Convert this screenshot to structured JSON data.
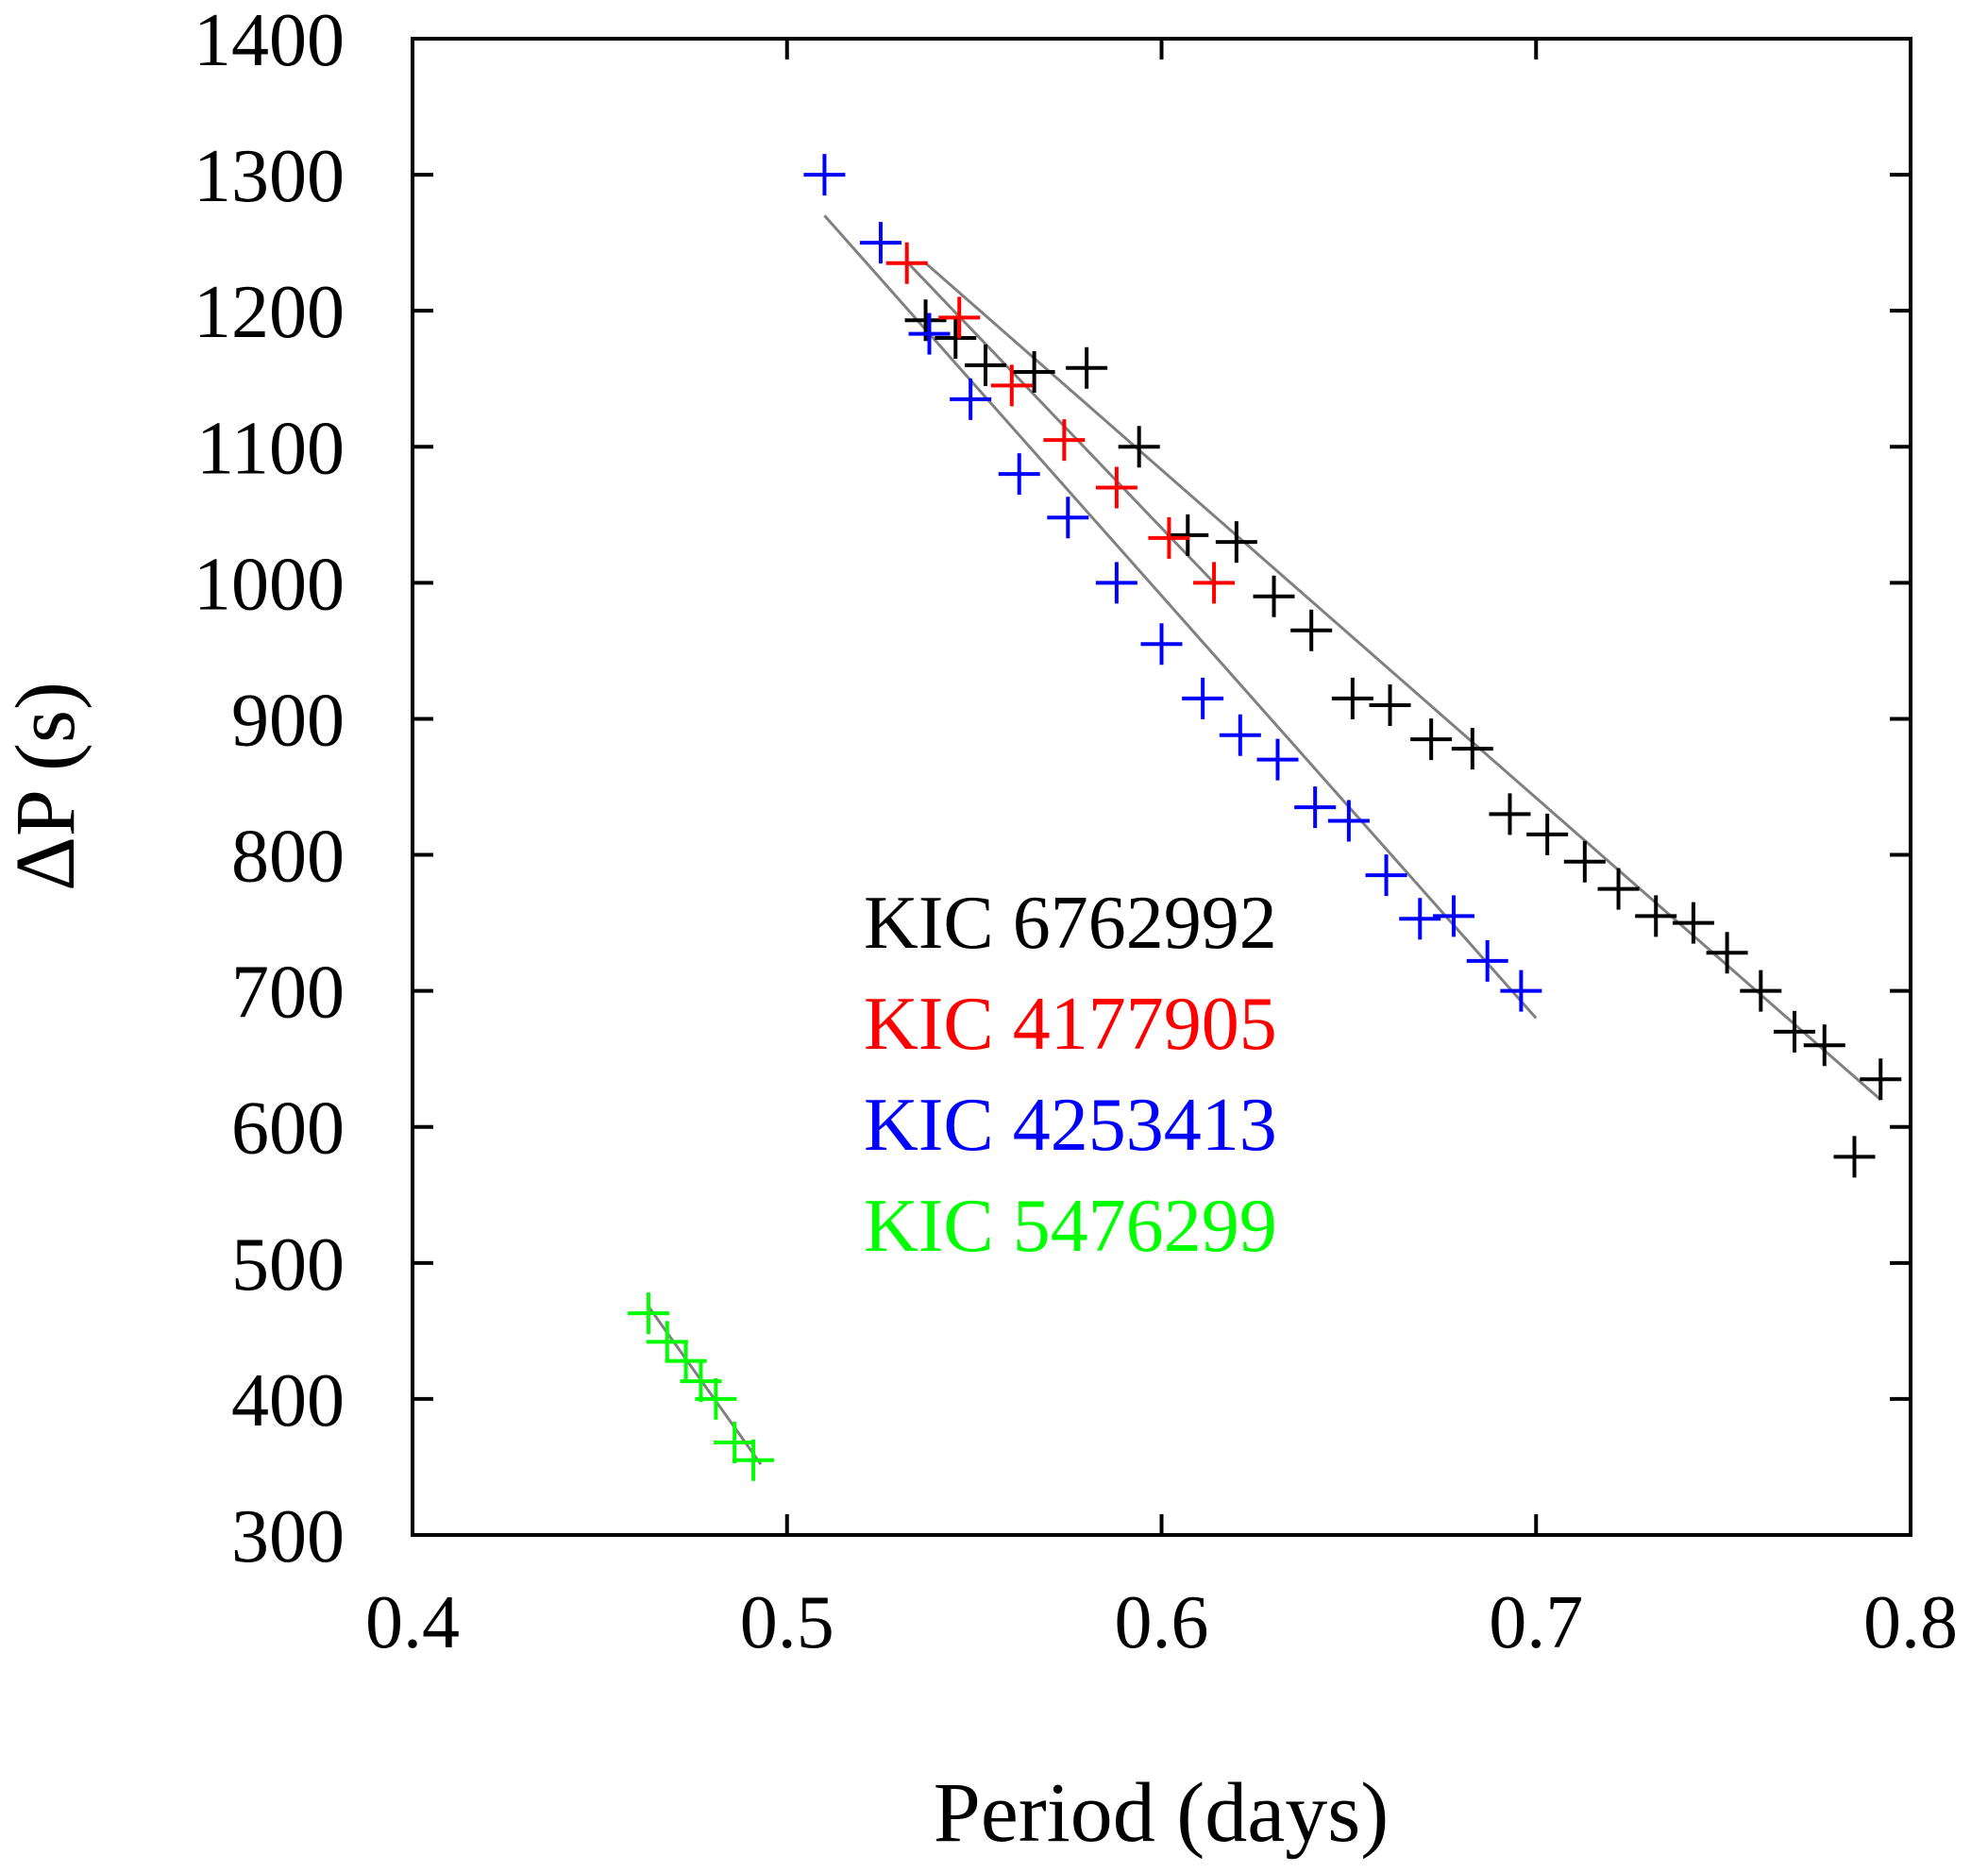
{
  "chart_data": {
    "type": "scatter",
    "title": "",
    "xlabel": "Period (days)",
    "ylabel": "ΔP (s)",
    "xlim": [
      0.4,
      0.8
    ],
    "ylim": [
      300,
      1400
    ],
    "xticks": [
      0.4,
      0.5,
      0.6,
      0.7,
      0.8
    ],
    "xtick_labels": [
      "0.4",
      "0.5",
      "0.6",
      "0.7",
      "0.8"
    ],
    "yticks": [
      300,
      400,
      500,
      600,
      700,
      800,
      900,
      1000,
      1100,
      1200,
      1300,
      1400
    ],
    "ytick_labels": [
      "300",
      "400",
      "500",
      "600",
      "700",
      "800",
      "900",
      "1000",
      "1100",
      "1200",
      "1300",
      "1400"
    ],
    "grid": false,
    "legend_position": "center",
    "fit_color": "#808080",
    "series": [
      {
        "name": "KIC 6762992",
        "color": "#000000",
        "x": [
          0.537,
          0.545,
          0.553,
          0.566,
          0.58,
          0.594,
          0.607,
          0.62,
          0.63,
          0.64,
          0.651,
          0.661,
          0.672,
          0.683,
          0.693,
          0.703,
          0.713,
          0.722,
          0.732,
          0.742,
          0.751,
          0.76,
          0.769,
          0.777,
          0.785,
          0.792
        ],
        "y": [
          1193,
          1180,
          1160,
          1155,
          1158,
          1100,
          1035,
          1030,
          990,
          965,
          915,
          910,
          885,
          878,
          830,
          815,
          795,
          775,
          755,
          750,
          728,
          700,
          670,
          660,
          578,
          635
        ],
        "fit": [
          [
            0.537,
            1235
          ],
          [
            0.792,
            620
          ]
        ]
      },
      {
        "name": "KIC 4177905",
        "color": "#ff0000",
        "x": [
          0.532,
          0.546,
          0.56,
          0.574,
          0.588,
          0.602,
          0.614
        ],
        "y": [
          1235,
          1195,
          1145,
          1105,
          1070,
          1033,
          1000
        ],
        "fit": [
          [
            0.532,
            1236
          ],
          [
            0.614,
            1000
          ]
        ]
      },
      {
        "name": "KIC 4253413",
        "color": "#0000ff",
        "x": [
          0.51,
          0.525,
          0.538,
          0.549,
          0.562,
          0.575,
          0.588,
          0.6,
          0.611,
          0.621,
          0.631,
          0.641,
          0.65,
          0.66,
          0.669,
          0.678,
          0.687,
          0.696
        ],
        "y": [
          1300,
          1250,
          1183,
          1135,
          1080,
          1048,
          1000,
          955,
          915,
          888,
          870,
          835,
          825,
          785,
          753,
          755,
          722,
          700
        ],
        "fit": [
          [
            0.51,
            1270
          ],
          [
            0.7,
            680
          ]
        ]
      },
      {
        "name": "KIC 5476299",
        "color": "#00ff00",
        "x": [
          0.463,
          0.468,
          0.473,
          0.477,
          0.481,
          0.486,
          0.491
        ],
        "y": [
          463,
          442,
          428,
          413,
          400,
          368,
          355
        ],
        "fit": [
          [
            0.463,
            468
          ],
          [
            0.493,
            352
          ]
        ]
      }
    ]
  }
}
